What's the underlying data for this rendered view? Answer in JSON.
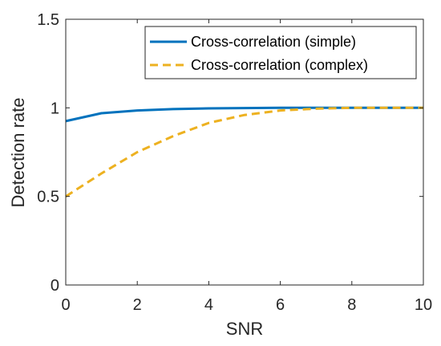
{
  "chart_data": {
    "type": "line",
    "xlabel": "SNR",
    "ylabel": "Detection rate",
    "xlim": [
      0,
      10
    ],
    "ylim": [
      0,
      1.5
    ],
    "xticks": [
      0,
      2,
      4,
      6,
      8,
      10
    ],
    "yticks": [
      0,
      0.5,
      1,
      1.5
    ],
    "xtick_labels": [
      "0",
      "2",
      "4",
      "6",
      "8",
      "10"
    ],
    "ytick_labels": [
      "0",
      "0.5",
      "1",
      "1.5"
    ],
    "grid": false,
    "legend_position": "top-right",
    "series": [
      {
        "name": "Cross-correlation (simple)",
        "color": "#0072BD",
        "style": "solid",
        "x": [
          0,
          1,
          2,
          3,
          4,
          5,
          6,
          7,
          8,
          9,
          10
        ],
        "y": [
          0.925,
          0.97,
          0.985,
          0.993,
          0.997,
          0.999,
          1.0,
          1.0,
          1.0,
          1.0,
          1.0
        ]
      },
      {
        "name": "Cross-correlation (complex)",
        "color": "#EDB120",
        "style": "dashed",
        "x": [
          0,
          1,
          2,
          3,
          4,
          5,
          6,
          7,
          8,
          9,
          10
        ],
        "y": [
          0.5,
          0.63,
          0.75,
          0.84,
          0.915,
          0.96,
          0.985,
          0.995,
          1.0,
          1.0,
          1.0
        ]
      }
    ]
  }
}
